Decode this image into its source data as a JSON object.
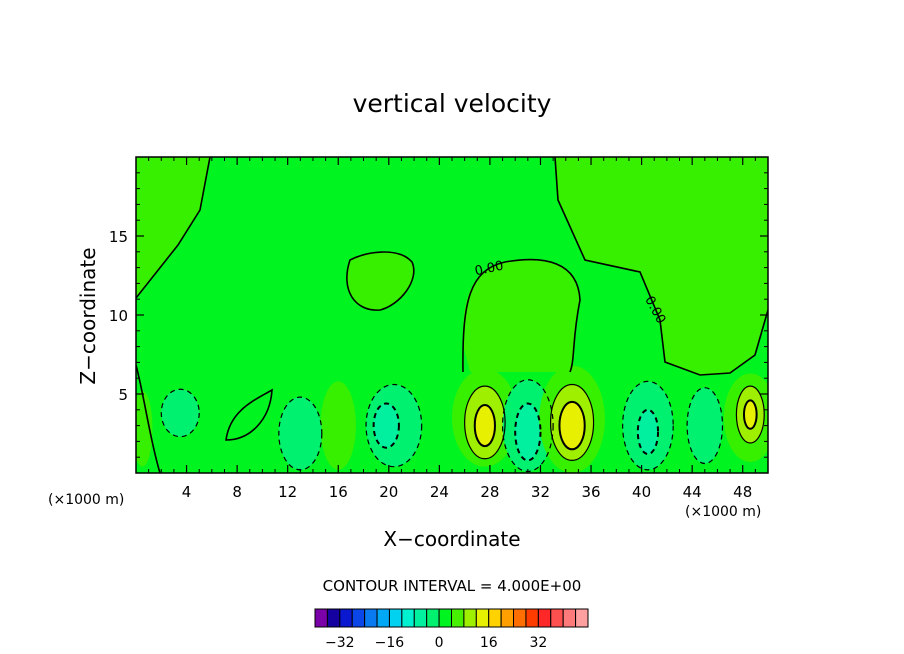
{
  "chart_data": {
    "type": "contour",
    "title": "vertical velocity",
    "xlabel": "X−coordinate",
    "ylabel": "Z−coordinate",
    "x_unit": "(×1000 m)",
    "x_unit_right": "(×1000 m)",
    "xlim": [
      0,
      50
    ],
    "ylim": [
      0,
      20
    ],
    "x_ticks": [
      4,
      8,
      12,
      16,
      20,
      24,
      28,
      32,
      36,
      40,
      44,
      48
    ],
    "y_ticks": [
      5,
      10,
      15
    ],
    "contour_interval_text": "CONTOUR INTERVAL = 4.000E+00",
    "contour_labels": [
      {
        "text": "0.00",
        "x": 28,
        "y": 12.7,
        "angle": -12
      },
      {
        "text": "0.00",
        "x": 40.8,
        "y": 10.2,
        "angle": 62
      }
    ],
    "colorbar": {
      "levels": [
        -36,
        -32,
        -28,
        -24,
        -20,
        -16,
        -12,
        -8,
        -4,
        0,
        4,
        8,
        12,
        16,
        20,
        24,
        28,
        32,
        36
      ],
      "colors": [
        "#7a00a8",
        "#1500a0",
        "#0a18d0",
        "#0a46e8",
        "#0a7af0",
        "#00a8f5",
        "#00d2f0",
        "#00f0d0",
        "#00f0a0",
        "#00f070",
        "#00f520",
        "#46f000",
        "#9ef000",
        "#e6f000",
        "#ffd200",
        "#ffa000",
        "#ff6e00",
        "#ff3c00",
        "#ff2828",
        "#ff5050",
        "#ff7a7a",
        "#ffa0a0"
      ],
      "tick_labels": [
        "−32",
        "−16",
        "0",
        "16",
        "32"
      ],
      "tick_values": [
        -32,
        -16,
        0,
        16,
        32
      ]
    }
  }
}
